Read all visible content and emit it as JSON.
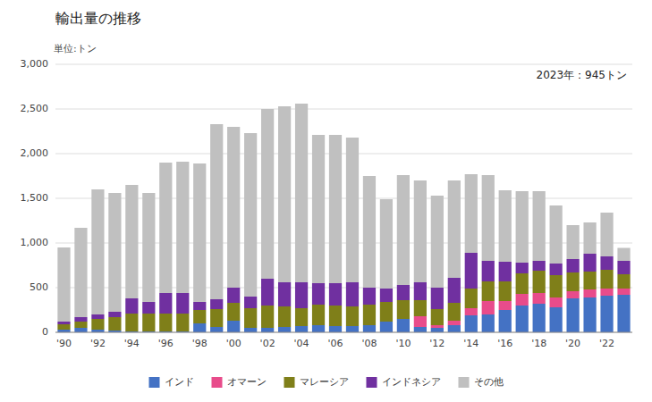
{
  "chart_data": {
    "type": "bar",
    "stacked": true,
    "title": "輸出量の推移",
    "subtitle": "単位:トン",
    "annotation": "2023年：945トン",
    "categories": [
      "'90",
      null,
      "'92",
      null,
      "'94",
      null,
      "'96",
      null,
      "'98",
      null,
      "'00",
      null,
      "'02",
      null,
      "'04",
      null,
      "'06",
      null,
      "'08",
      null,
      "'10",
      null,
      "'12",
      null,
      "'14",
      null,
      "'16",
      null,
      "'18",
      null,
      "'20",
      null,
      "'22",
      null
    ],
    "series": [
      {
        "name": "インド",
        "color": "#4472c4",
        "values": [
          30,
          50,
          30,
          20,
          10,
          10,
          10,
          10,
          100,
          60,
          130,
          50,
          50,
          60,
          70,
          80,
          70,
          70,
          80,
          120,
          150,
          60,
          50,
          80,
          190,
          200,
          250,
          300,
          320,
          280,
          380,
          390,
          410,
          420
        ]
      },
      {
        "name": "オマーン",
        "color": "#e84c8b",
        "values": [
          0,
          0,
          0,
          0,
          0,
          0,
          0,
          0,
          0,
          0,
          0,
          0,
          0,
          0,
          0,
          0,
          0,
          0,
          0,
          0,
          0,
          120,
          30,
          50,
          80,
          150,
          100,
          130,
          120,
          110,
          80,
          90,
          80,
          70
        ]
      },
      {
        "name": "マレーシア",
        "color": "#7f7f19",
        "values": [
          60,
          70,
          120,
          150,
          200,
          200,
          200,
          200,
          150,
          200,
          200,
          220,
          250,
          230,
          200,
          230,
          230,
          220,
          230,
          220,
          210,
          180,
          180,
          200,
          220,
          220,
          220,
          230,
          250,
          250,
          210,
          200,
          210,
          160
        ]
      },
      {
        "name": "インドネシア",
        "color": "#7030a0",
        "values": [
          30,
          50,
          50,
          60,
          170,
          130,
          230,
          230,
          90,
          110,
          170,
          130,
          300,
          270,
          290,
          240,
          250,
          270,
          190,
          150,
          170,
          200,
          240,
          280,
          400,
          230,
          220,
          120,
          110,
          130,
          150,
          200,
          150,
          150
        ]
      },
      {
        "name": "その他",
        "color": "#c0c0c0",
        "values": [
          830,
          1000,
          1400,
          1330,
          1270,
          1220,
          1460,
          1470,
          1550,
          1960,
          1800,
          1830,
          1900,
          1970,
          2000,
          1660,
          1660,
          1620,
          1250,
          1000,
          1230,
          1140,
          1030,
          1090,
          880,
          960,
          800,
          800,
          780,
          650,
          380,
          350,
          490,
          145
        ]
      }
    ],
    "ylim": [
      0,
      3000
    ],
    "yticks": [
      0,
      500,
      {
        "value": 1000,
        "label": "1,000"
      },
      {
        "value": 1500,
        "label": "1,500"
      },
      {
        "value": 2000,
        "label": "2,000"
      },
      {
        "value": 2500,
        "label": "2,500"
      },
      {
        "value": 3000,
        "label": "3,000"
      }
    ],
    "grid": true,
    "legend": "bottom"
  }
}
